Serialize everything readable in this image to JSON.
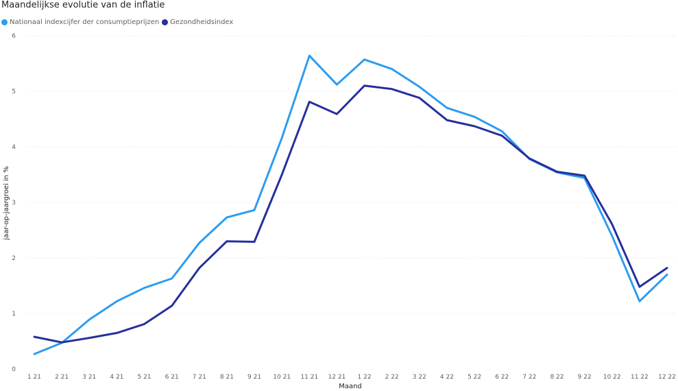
{
  "chart_data": {
    "type": "line",
    "title": "Maandelijkse evolutie van de inflatie",
    "xlabel": "Maand",
    "ylabel": "jaar-op-jaargroei in %",
    "ylim": [
      0,
      6
    ],
    "yticks": [
      "0",
      "1",
      "2",
      "3",
      "4",
      "5",
      "6"
    ],
    "grid": true,
    "legend_position": "top-left",
    "categories": [
      "1 21",
      "2 21",
      "3 21",
      "4 21",
      "5 21",
      "6 21",
      "7 21",
      "8 21",
      "9 21",
      "10 21",
      "11 21",
      "12 21",
      "1 22",
      "2 22",
      "3 22",
      "4 22",
      "5 22",
      "6 22",
      "7 22",
      "8 22",
      "9 22",
      "10 22",
      "11 22",
      "12 22"
    ],
    "series": [
      {
        "name": "Nationaal indexcijfer der consumptieprijzen",
        "color": "#2d9cf0",
        "values": [
          0.27,
          0.47,
          0.89,
          1.22,
          1.46,
          1.63,
          2.27,
          2.73,
          2.86,
          4.16,
          5.64,
          5.12,
          5.57,
          5.4,
          5.08,
          4.7,
          4.54,
          4.28,
          3.78,
          3.54,
          3.44,
          2.4,
          1.22,
          1.7
        ]
      },
      {
        "name": "Gezondheidsindex",
        "color": "#262f9c",
        "values": [
          0.58,
          0.48,
          0.56,
          0.65,
          0.81,
          1.14,
          1.82,
          2.3,
          2.29,
          3.5,
          4.81,
          4.59,
          5.1,
          5.04,
          4.88,
          4.48,
          4.37,
          4.2,
          3.79,
          3.55,
          3.48,
          2.61,
          1.48,
          1.82
        ]
      }
    ]
  }
}
